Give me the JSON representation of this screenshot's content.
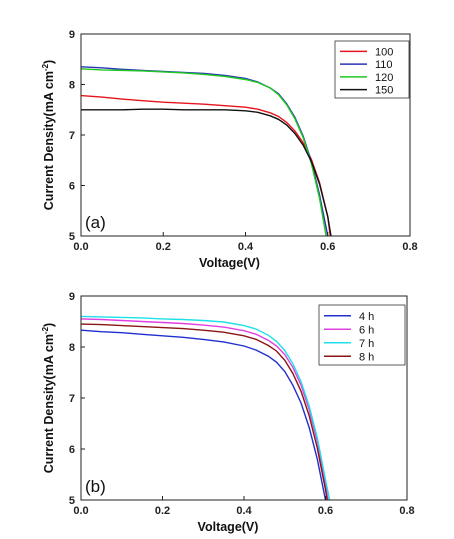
{
  "chart_data": [
    {
      "type": "line",
      "panel_label": "(a)",
      "xlabel": "Voltage(V)",
      "ylabel": "Current Density(mA cm",
      "ylabel_sup": "-2",
      "ylabel_close": ")",
      "xlim": [
        0.0,
        0.8
      ],
      "ylim": [
        5,
        9
      ],
      "xticks": [
        "0.0",
        "0.2",
        "0.4",
        "0.6",
        "0.8"
      ],
      "yticks": [
        "5",
        "6",
        "7",
        "8",
        "9"
      ],
      "legend_position": "top-right",
      "series": [
        {
          "name": "100",
          "color": "#e8141c",
          "x": [
            0.0,
            0.05,
            0.1,
            0.15,
            0.2,
            0.25,
            0.3,
            0.35,
            0.4,
            0.43,
            0.46,
            0.48,
            0.5,
            0.52,
            0.54,
            0.56,
            0.58,
            0.6,
            0.606
          ],
          "y": [
            7.78,
            7.75,
            7.71,
            7.68,
            7.65,
            7.63,
            7.61,
            7.58,
            7.55,
            7.51,
            7.44,
            7.37,
            7.25,
            7.08,
            6.85,
            6.52,
            6.06,
            5.38,
            5.0
          ]
        },
        {
          "name": "110",
          "color": "#2a35b5",
          "x": [
            0.0,
            0.05,
            0.1,
            0.15,
            0.2,
            0.25,
            0.3,
            0.35,
            0.4,
            0.43,
            0.46,
            0.48,
            0.5,
            0.52,
            0.54,
            0.56,
            0.58,
            0.6
          ],
          "y": [
            8.35,
            8.33,
            8.3,
            8.28,
            8.26,
            8.24,
            8.22,
            8.18,
            8.12,
            8.05,
            7.93,
            7.82,
            7.62,
            7.35,
            6.98,
            6.48,
            5.82,
            5.0
          ]
        },
        {
          "name": "120",
          "color": "#1fc81f",
          "x": [
            0.0,
            0.05,
            0.1,
            0.15,
            0.2,
            0.25,
            0.3,
            0.35,
            0.4,
            0.43,
            0.46,
            0.48,
            0.5,
            0.52,
            0.54,
            0.56,
            0.58,
            0.596
          ],
          "y": [
            8.31,
            8.29,
            8.28,
            8.27,
            8.25,
            8.23,
            8.2,
            8.16,
            8.1,
            8.04,
            7.93,
            7.8,
            7.6,
            7.32,
            6.95,
            6.44,
            5.75,
            5.0
          ]
        },
        {
          "name": "150",
          "color": "#111111",
          "x": [
            0.0,
            0.05,
            0.1,
            0.15,
            0.2,
            0.25,
            0.3,
            0.35,
            0.4,
            0.43,
            0.46,
            0.48,
            0.5,
            0.52,
            0.54,
            0.56,
            0.58,
            0.6,
            0.608
          ],
          "y": [
            7.5,
            7.5,
            7.5,
            7.51,
            7.51,
            7.5,
            7.5,
            7.5,
            7.48,
            7.45,
            7.38,
            7.31,
            7.2,
            7.03,
            6.8,
            6.48,
            6.03,
            5.38,
            5.0
          ]
        }
      ]
    },
    {
      "type": "line",
      "panel_label": "(b)",
      "xlabel": "Voltage(V)",
      "ylabel": "Current Density(mA cm",
      "ylabel_sup": "-2",
      "ylabel_close": ")",
      "xlim": [
        0.0,
        0.8
      ],
      "ylim": [
        5,
        9
      ],
      "xticks": [
        "0.0",
        "0.2",
        "0.4",
        "0.6",
        "0.8"
      ],
      "yticks": [
        "5",
        "6",
        "7",
        "8",
        "9"
      ],
      "legend_position": "top-right",
      "series": [
        {
          "name": "4 h",
          "color": "#1f2fd0",
          "x": [
            0.0,
            0.05,
            0.1,
            0.15,
            0.2,
            0.25,
            0.3,
            0.35,
            0.4,
            0.43,
            0.46,
            0.48,
            0.5,
            0.52,
            0.54,
            0.56,
            0.58,
            0.6
          ],
          "y": [
            8.33,
            8.3,
            8.28,
            8.25,
            8.22,
            8.19,
            8.15,
            8.1,
            8.02,
            7.94,
            7.82,
            7.7,
            7.52,
            7.25,
            6.9,
            6.42,
            5.8,
            5.0
          ]
        },
        {
          "name": "6 h",
          "color": "#e040e0",
          "x": [
            0.0,
            0.05,
            0.1,
            0.15,
            0.2,
            0.25,
            0.3,
            0.35,
            0.4,
            0.43,
            0.46,
            0.48,
            0.5,
            0.52,
            0.54,
            0.56,
            0.58,
            0.6,
            0.606
          ],
          "y": [
            8.55,
            8.54,
            8.52,
            8.5,
            8.48,
            8.46,
            8.43,
            8.39,
            8.32,
            8.25,
            8.13,
            8.02,
            7.85,
            7.6,
            7.25,
            6.77,
            6.15,
            5.3,
            5.0
          ]
        },
        {
          "name": "7 h",
          "color": "#1ee0e8",
          "x": [
            0.0,
            0.05,
            0.1,
            0.15,
            0.2,
            0.25,
            0.3,
            0.35,
            0.4,
            0.43,
            0.46,
            0.48,
            0.5,
            0.52,
            0.54,
            0.56,
            0.58,
            0.6,
            0.61
          ],
          "y": [
            8.6,
            8.59,
            8.58,
            8.57,
            8.55,
            8.54,
            8.52,
            8.49,
            8.42,
            8.35,
            8.23,
            8.11,
            7.93,
            7.67,
            7.32,
            6.84,
            6.22,
            5.4,
            5.0
          ]
        },
        {
          "name": "8 h",
          "color": "#8b1414",
          "x": [
            0.0,
            0.05,
            0.1,
            0.15,
            0.2,
            0.25,
            0.3,
            0.35,
            0.4,
            0.43,
            0.46,
            0.48,
            0.5,
            0.52,
            0.54,
            0.56,
            0.58,
            0.6,
            0.604
          ],
          "y": [
            8.45,
            8.44,
            8.42,
            8.4,
            8.38,
            8.36,
            8.33,
            8.29,
            8.22,
            8.15,
            8.03,
            7.92,
            7.74,
            7.48,
            7.13,
            6.65,
            6.02,
            5.2,
            5.0
          ]
        }
      ]
    }
  ]
}
